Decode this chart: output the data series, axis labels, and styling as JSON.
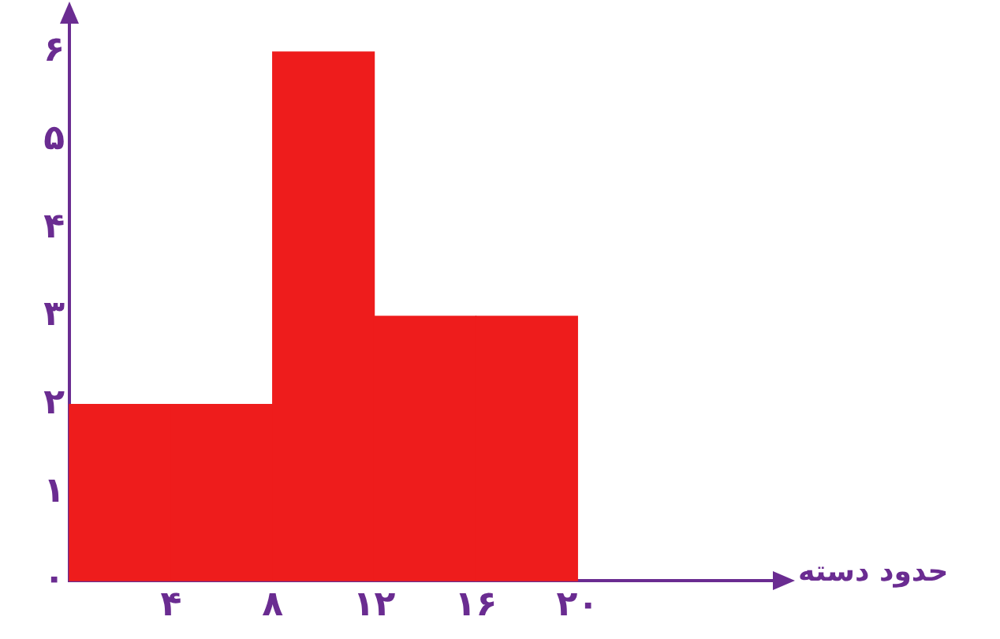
{
  "chart_data": {
    "type": "histogram",
    "xlabel": "حدود دسته",
    "bins": [
      0,
      4,
      8,
      12,
      16,
      20
    ],
    "values": [
      2,
      2,
      6,
      3,
      3
    ],
    "color": "#ee1c1c",
    "xlim": [
      0,
      28
    ],
    "ylim": [
      0,
      6.3
    ],
    "xticks": [
      {
        "value": 0,
        "label": null
      },
      {
        "value": 4,
        "label": "۴"
      },
      {
        "value": 8,
        "label": "۸"
      },
      {
        "value": 12,
        "label": "۱۲"
      },
      {
        "value": 16,
        "label": "۱۶"
      },
      {
        "value": 20,
        "label": "۲۰"
      }
    ],
    "yticks": [
      {
        "value": 0,
        "label": "۰"
      },
      {
        "value": 1,
        "label": "۱"
      },
      {
        "value": 2,
        "label": "۲"
      },
      {
        "value": 3,
        "label": "۳"
      },
      {
        "value": 4,
        "label": "۴"
      },
      {
        "value": 5,
        "label": "۵"
      },
      {
        "value": 6,
        "label": "۶"
      }
    ],
    "grid": false,
    "legend": false
  }
}
